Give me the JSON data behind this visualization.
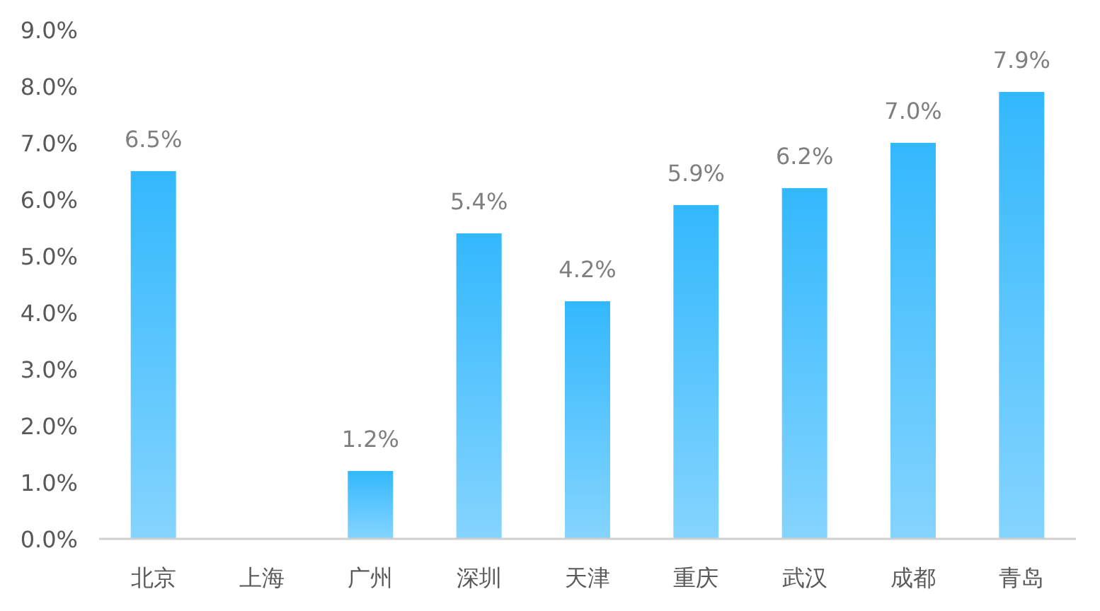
{
  "chart_data": {
    "type": "bar",
    "categories": [
      "北京",
      "上海",
      "广州",
      "深圳",
      "天津",
      "重庆",
      "武汉",
      "成都",
      "青岛"
    ],
    "series": [
      {
        "color": "#33b8fd",
        "values": [
          6.5,
          null,
          1.2,
          5.4,
          4.2,
          5.9,
          6.2,
          7.0,
          7.9
        ],
        "value_labels": [
          "6.5%",
          null,
          "1.2%",
          "5.4%",
          "4.2%",
          "5.9%",
          "6.2%",
          "7.0%",
          "7.9%"
        ]
      }
    ],
    "ylim": [
      0,
      9
    ],
    "yticks": [
      {
        "value": 0,
        "label": "0.0%"
      },
      {
        "value": 1,
        "label": "1.0%"
      },
      {
        "value": 2,
        "label": "2.0%"
      },
      {
        "value": 3,
        "label": "3.0%"
      },
      {
        "value": 4,
        "label": "4.0%"
      },
      {
        "value": 5,
        "label": "5.0%"
      },
      {
        "value": 6,
        "label": "6.0%"
      },
      {
        "value": 7,
        "label": "7.0%"
      },
      {
        "value": 8,
        "label": "8.0%"
      },
      {
        "value": 9,
        "label": "9.0%"
      }
    ],
    "grid": false
  }
}
